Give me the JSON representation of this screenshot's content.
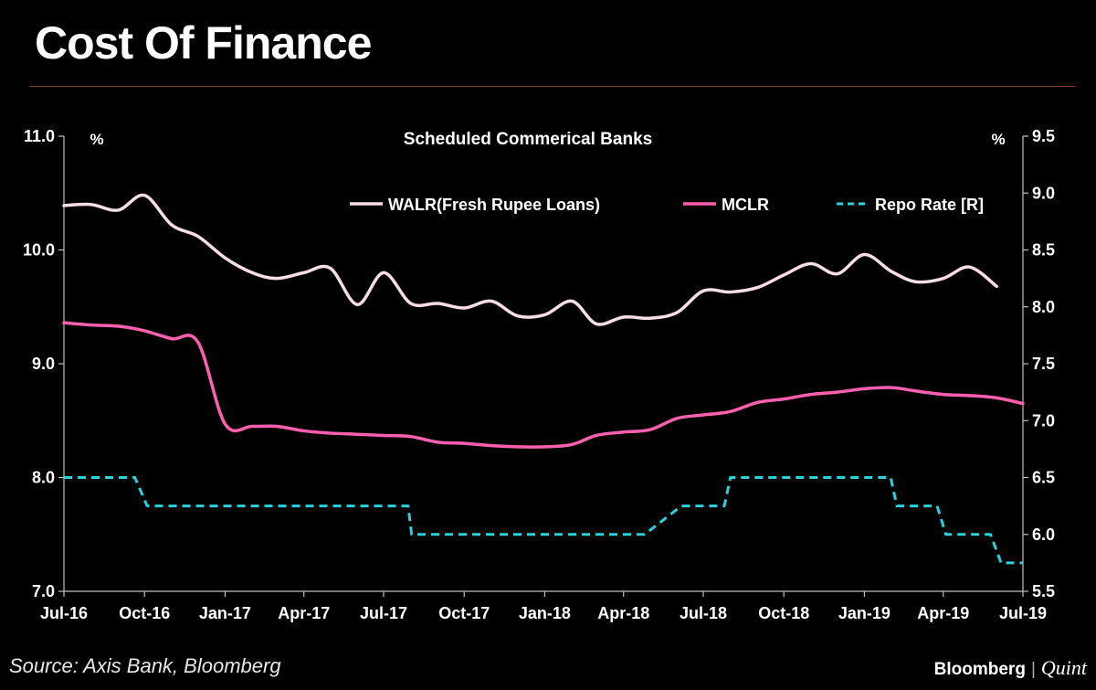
{
  "page": {
    "title": "Cost Of Finance",
    "source": "Source: Axis Bank, Bloomberg",
    "brand_name": "Bloomberg",
    "brand_separator": "|",
    "brand_suffix": "Quint"
  },
  "colors": {
    "background": "#000000",
    "walr": "#f6dde6",
    "mclr": "#ff5fb0",
    "repo": "#29d3dd",
    "axis": "#bfbfbf",
    "rule": "#8b3a2a"
  },
  "chart_data": {
    "type": "line",
    "title": "Scheduled Commerical Banks",
    "left_unit": "%",
    "right_unit": "%",
    "grid": false,
    "legend_position": "top",
    "x_ticks": [
      "Jul-16",
      "Oct-16",
      "Jan-17",
      "Apr-17",
      "Jul-17",
      "Oct-17",
      "Jan-18",
      "Apr-18",
      "Jul-18",
      "Oct-18",
      "Jan-19",
      "Apr-19",
      "Jul-19"
    ],
    "x_range": [
      "Jul-16",
      "Jul-19"
    ],
    "left_axis": {
      "min": 7.0,
      "max": 11.0,
      "ticks": [
        "7.0",
        "8.0",
        "9.0",
        "10.0",
        "11.0"
      ]
    },
    "right_axis": {
      "min": 5.5,
      "max": 9.5,
      "ticks": [
        "5.5",
        "6.0",
        "6.5",
        "7.0",
        "7.5",
        "8.0",
        "8.5",
        "9.0",
        "9.5"
      ]
    },
    "series": [
      {
        "name": "WALR(Fresh Rupee Loans)",
        "axis": "left",
        "style": "solid",
        "x": [
          "2016-07-01",
          "2016-08-01",
          "2016-09-01",
          "2016-10-01",
          "2016-11-01",
          "2016-12-01",
          "2017-01-01",
          "2017-02-01",
          "2017-03-01",
          "2017-04-01",
          "2017-05-01",
          "2017-06-01",
          "2017-07-01",
          "2017-08-01",
          "2017-09-01",
          "2017-10-01",
          "2017-11-01",
          "2017-12-01",
          "2018-01-01",
          "2018-02-01",
          "2018-03-01",
          "2018-04-01",
          "2018-05-01",
          "2018-06-01",
          "2018-07-01",
          "2018-08-01",
          "2018-09-01",
          "2018-10-01",
          "2018-11-01",
          "2018-12-01",
          "2019-01-01",
          "2019-02-01",
          "2019-03-01",
          "2019-04-01",
          "2019-05-01",
          "2019-06-01"
        ],
        "values": [
          10.39,
          10.4,
          10.35,
          10.48,
          10.22,
          10.12,
          9.93,
          9.8,
          9.75,
          9.8,
          9.84,
          9.52,
          9.8,
          9.53,
          9.53,
          9.49,
          9.55,
          9.42,
          9.43,
          9.55,
          9.35,
          9.41,
          9.4,
          9.45,
          9.64,
          9.63,
          9.67,
          9.78,
          9.88,
          9.79,
          9.96,
          9.81,
          9.72,
          9.75,
          9.85,
          9.68
        ]
      },
      {
        "name": "MCLR",
        "axis": "left",
        "style": "solid",
        "x": [
          "2016-07-01",
          "2016-08-01",
          "2016-09-01",
          "2016-10-01",
          "2016-11-01",
          "2016-12-01",
          "2017-01-01",
          "2017-02-01",
          "2017-03-01",
          "2017-04-01",
          "2017-05-01",
          "2017-06-01",
          "2017-07-01",
          "2017-08-01",
          "2017-09-01",
          "2017-10-01",
          "2017-11-01",
          "2017-12-01",
          "2018-01-01",
          "2018-02-01",
          "2018-03-01",
          "2018-04-01",
          "2018-05-01",
          "2018-06-01",
          "2018-07-01",
          "2018-08-01",
          "2018-09-01",
          "2018-10-01",
          "2018-11-01",
          "2018-12-01",
          "2019-01-01",
          "2019-02-01",
          "2019-03-01",
          "2019-04-01",
          "2019-05-01",
          "2019-06-01",
          "2019-07-01"
        ],
        "values": [
          9.36,
          9.34,
          9.33,
          9.29,
          9.22,
          9.19,
          8.47,
          8.45,
          8.45,
          8.41,
          8.39,
          8.38,
          8.37,
          8.36,
          8.31,
          8.3,
          8.28,
          8.27,
          8.27,
          8.29,
          8.37,
          8.4,
          8.42,
          8.52,
          8.55,
          8.58,
          8.66,
          8.69,
          8.73,
          8.75,
          8.78,
          8.79,
          8.76,
          8.73,
          8.72,
          8.7,
          8.65
        ]
      },
      {
        "name": "Repo Rate [R]",
        "axis": "right",
        "style": "dashed",
        "x": [
          "2016-07-01",
          "2016-09-20",
          "2016-10-04",
          "2017-07-29",
          "2017-08-02",
          "2018-04-25",
          "2018-06-06",
          "2018-07-25",
          "2018-08-01",
          "2019-01-31",
          "2019-02-07",
          "2019-03-25",
          "2019-04-04",
          "2019-05-25",
          "2019-06-06",
          "2019-07-01"
        ],
        "values": [
          6.5,
          6.5,
          6.25,
          6.25,
          6.0,
          6.0,
          6.25,
          6.25,
          6.5,
          6.5,
          6.25,
          6.25,
          6.0,
          6.0,
          5.75,
          5.75
        ]
      }
    ]
  }
}
